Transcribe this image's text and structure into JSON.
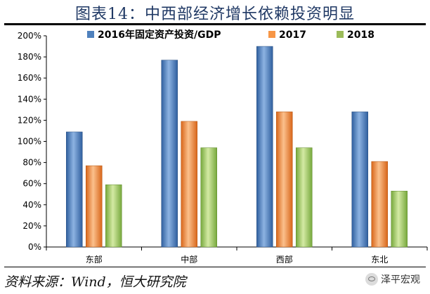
{
  "title": "图表14：中西部经济增长依赖投资明显",
  "source": "资料来源：Wind，恒大研究院",
  "watermark": {
    "text": "泽平宏观",
    "icon": "wechat-icon"
  },
  "chart_data": {
    "type": "bar",
    "categories": [
      "东部",
      "中部",
      "西部",
      "东北"
    ],
    "series": [
      {
        "name": "2016年固定资产投资/GDP",
        "values": [
          109,
          177,
          190,
          128
        ],
        "color": "#4f81bd"
      },
      {
        "name": "2017",
        "values": [
          77,
          119,
          128,
          81
        ],
        "color": "#f79646"
      },
      {
        "name": "2018",
        "values": [
          59,
          94,
          94,
          53
        ],
        "color": "#9bbb59"
      }
    ],
    "ylim": [
      0,
      200
    ],
    "yticks": [
      "0%",
      "20%",
      "40%",
      "60%",
      "80%",
      "100%",
      "120%",
      "140%",
      "160%",
      "180%",
      "200%"
    ],
    "unit": "%",
    "legend_position": "top",
    "grid": false
  }
}
